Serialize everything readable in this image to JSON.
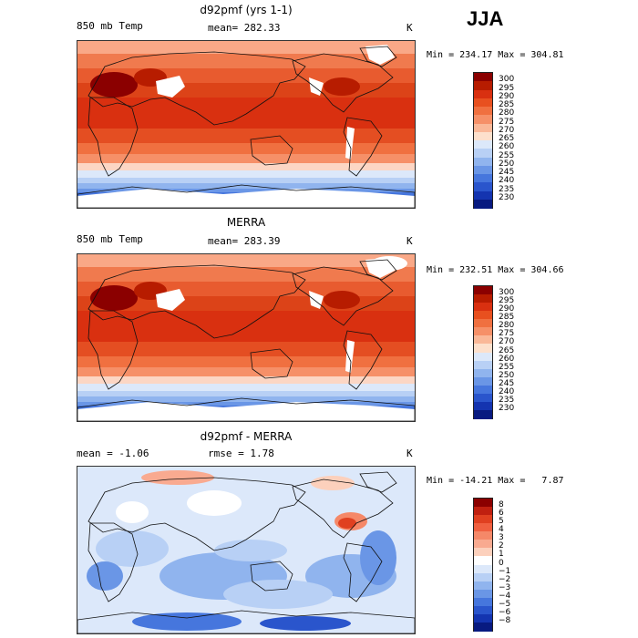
{
  "season": "JJA",
  "panels": [
    {
      "title": "d92pmf (yrs 1-1)",
      "left_label": "850 mb Temp",
      "center_label": "mean= 282.33",
      "unit": "K",
      "stats": "Min = 234.17 Max = 304.81",
      "scale": "temp",
      "colorbar": {
        "labels": [
          "300",
          "295",
          "290",
          "285",
          "280",
          "275",
          "270",
          "265",
          "260",
          "255",
          "250",
          "245",
          "240",
          "235",
          "230"
        ],
        "colors": [
          "#8b0000",
          "#b71c00",
          "#d93010",
          "#e8501f",
          "#f07040",
          "#f69068",
          "#fab898",
          "#fde0cc",
          "#dce8fa",
          "#b8d0f5",
          "#90b4ee",
          "#6a96e6",
          "#4676dd",
          "#2a55cc",
          "#1434b0",
          "#081a80"
        ]
      }
    },
    {
      "title": "MERRA",
      "left_label": "850 mb Temp",
      "center_label": "mean= 283.39",
      "unit": "K",
      "stats": "Min = 232.51 Max = 304.66",
      "scale": "temp",
      "colorbar": {
        "labels": [
          "300",
          "295",
          "290",
          "285",
          "280",
          "275",
          "270",
          "265",
          "260",
          "255",
          "250",
          "245",
          "240",
          "235",
          "230"
        ],
        "colors": [
          "#8b0000",
          "#b71c00",
          "#d93010",
          "#e8501f",
          "#f07040",
          "#f69068",
          "#fab898",
          "#fde0cc",
          "#dce8fa",
          "#b8d0f5",
          "#90b4ee",
          "#6a96e6",
          "#4676dd",
          "#2a55cc",
          "#1434b0",
          "#081a80"
        ]
      }
    },
    {
      "title": "d92pmf - MERRA",
      "left_label": "mean =  -1.06",
      "center_label": "rmse =   1.78",
      "unit": "K",
      "stats": "Min = -14.21 Max =   7.87",
      "scale": "diff",
      "colorbar": {
        "labels": [
          "8",
          "6",
          "5",
          "4",
          "3",
          "2",
          "1",
          "0",
          "−1",
          "−2",
          "−3",
          "−4",
          "−5",
          "−6",
          "−8"
        ],
        "colors": [
          "#8b0000",
          "#c02010",
          "#e04020",
          "#f06040",
          "#f58868",
          "#f9aa90",
          "#fcd0bc",
          "#ffffff",
          "#dce8fa",
          "#b8d0f5",
          "#90b4ee",
          "#6a96e6",
          "#4676dd",
          "#2a55cc",
          "#1434b0",
          "#081a80"
        ]
      }
    }
  ]
}
